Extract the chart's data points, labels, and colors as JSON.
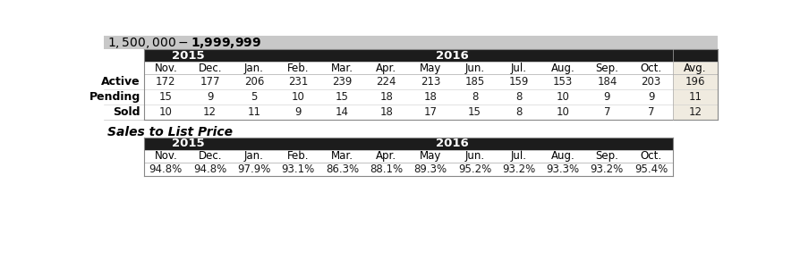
{
  "title": "$1,500,000 - $1,999,999",
  "title_bg": "#c8c8c8",
  "header_bg": "#1c1c1c",
  "header_text": "#ffffff",
  "avg_bg": "#f0ebe0",
  "row_bg": "#ffffff",
  "row_labels": [
    "Active",
    "Pending",
    "Sold"
  ],
  "col_labels": [
    "Nov.",
    "Dec.",
    "Jan.",
    "Feb.",
    "Mar.",
    "Apr.",
    "May",
    "Jun.",
    "Jul.",
    "Aug.",
    "Sep.",
    "Oct.",
    "Avg."
  ],
  "active": [
    172,
    177,
    206,
    231,
    239,
    224,
    213,
    185,
    159,
    153,
    184,
    203,
    196
  ],
  "pending": [
    15,
    9,
    5,
    10,
    15,
    18,
    18,
    8,
    8,
    10,
    9,
    9,
    11
  ],
  "sold": [
    10,
    12,
    11,
    9,
    14,
    18,
    17,
    15,
    8,
    10,
    7,
    7,
    12
  ],
  "sales_label": "Sales to List Price",
  "sales_months": [
    "Nov.",
    "Dec.",
    "Jan.",
    "Feb.",
    "Mar.",
    "Apr.",
    "May",
    "Jun.",
    "Jul.",
    "Aug.",
    "Sep.",
    "Oct."
  ],
  "sales_values": [
    "94.8%",
    "94.8%",
    "97.9%",
    "93.1%",
    "86.3%",
    "88.1%",
    "89.3%",
    "95.2%",
    "93.2%",
    "93.3%",
    "93.2%",
    "95.4%"
  ],
  "font_size": 8.5,
  "title_font_size": 10,
  "sales_label_font_size": 10
}
